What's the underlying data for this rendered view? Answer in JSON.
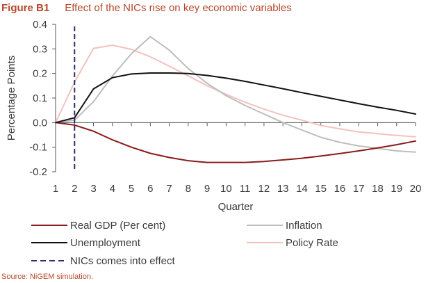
{
  "header": {
    "figure_label": "Figure B1",
    "title": "Effect of the NICs rise on key economic variables"
  },
  "source": "Source: NiGEM simulation.",
  "chart_data": {
    "type": "line",
    "title": "Effect of the NICs rise on key economic variables",
    "xlabel": "Quarter",
    "ylabel": "Percentage Points",
    "x": [
      1,
      2,
      3,
      4,
      5,
      6,
      7,
      8,
      9,
      10,
      11,
      12,
      13,
      14,
      15,
      16,
      17,
      18,
      19,
      20
    ],
    "xlim": [
      1,
      20
    ],
    "ylim": [
      -0.2,
      0.4
    ],
    "yticks": [
      -0.2,
      -0.1,
      0.0,
      0.1,
      0.2,
      0.3,
      0.4
    ],
    "ytick_labels": [
      "-0.2",
      "-0.1",
      "0.0",
      "0.1",
      "0.2",
      "0.3",
      "0.4"
    ],
    "xtick_labels": [
      "1",
      "2",
      "3",
      "4",
      "5",
      "6",
      "7",
      "8",
      "9",
      "10",
      "11",
      "12",
      "13",
      "14",
      "15",
      "16",
      "17",
      "18",
      "19",
      "20"
    ],
    "grid": false,
    "legend_position": "bottom",
    "series": [
      {
        "name": "Real GDP (Per cent)",
        "color": "#8b1a1a",
        "values": [
          0.0,
          -0.01,
          -0.035,
          -0.07,
          -0.1,
          -0.125,
          -0.142,
          -0.155,
          -0.162,
          -0.162,
          -0.162,
          -0.158,
          -0.152,
          -0.145,
          -0.136,
          -0.126,
          -0.115,
          -0.103,
          -0.09,
          -0.075
        ]
      },
      {
        "name": "Inflation",
        "color": "#bdbdbd",
        "values": [
          0.0,
          0.01,
          0.085,
          0.19,
          0.28,
          0.35,
          0.295,
          0.22,
          0.16,
          0.11,
          0.07,
          0.035,
          0.0,
          -0.03,
          -0.06,
          -0.08,
          -0.095,
          -0.105,
          -0.115,
          -0.12
        ]
      },
      {
        "name": "Unemployment",
        "color": "#111111",
        "values": [
          0.0,
          0.02,
          0.137,
          0.183,
          0.198,
          0.202,
          0.202,
          0.2,
          0.192,
          0.181,
          0.168,
          0.153,
          0.138,
          0.122,
          0.107,
          0.092,
          0.077,
          0.063,
          0.05,
          0.035
        ]
      },
      {
        "name": "Policy Rate",
        "color": "#f2c2bc",
        "values": [
          0.0,
          0.165,
          0.302,
          0.315,
          0.298,
          0.268,
          0.23,
          0.19,
          0.15,
          0.115,
          0.083,
          0.055,
          0.03,
          0.01,
          -0.012,
          -0.025,
          -0.038,
          -0.045,
          -0.052,
          -0.058
        ]
      }
    ],
    "reference_lines": [
      {
        "name": "NICs comes into effect",
        "x": 2,
        "color": "#2b2f6b",
        "style": "dashed"
      }
    ],
    "legend_entries": [
      {
        "name": "Real GDP (Per cent)",
        "color": "#8b1a1a",
        "style": "solid"
      },
      {
        "name": "Inflation",
        "color": "#bdbdbd",
        "style": "solid"
      },
      {
        "name": "Unemployment",
        "color": "#111111",
        "style": "solid"
      },
      {
        "name": "Policy Rate",
        "color": "#f2c2bc",
        "style": "solid"
      },
      {
        "name": "NICs comes into effect",
        "color": "#2b2f6b",
        "style": "dashed"
      }
    ]
  }
}
